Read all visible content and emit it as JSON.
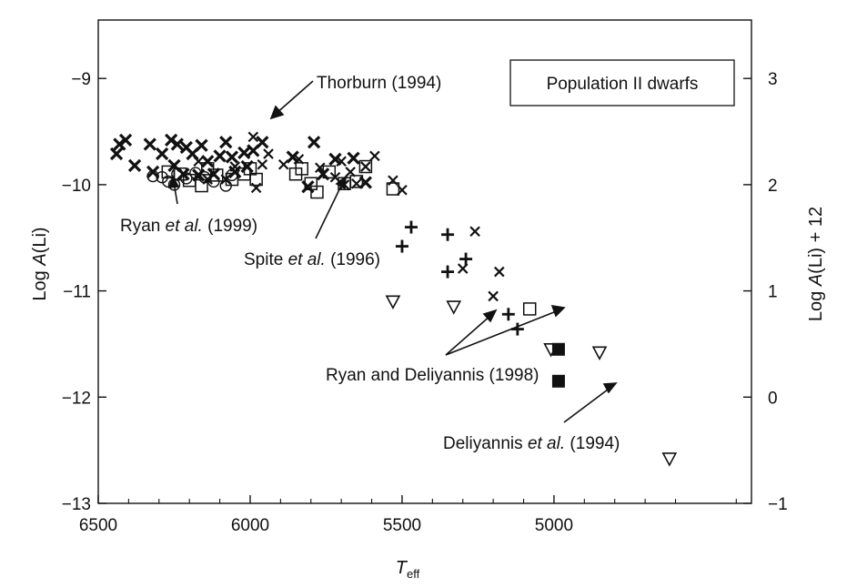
{
  "chart_data": {
    "type": "scatter",
    "title": "",
    "inset_label": "Population II dwarfs",
    "xlabel": "T",
    "xlabel_sub": "eff",
    "ylabel_left": "Log A(Li)",
    "ylabel_right": "Log A(Li) + 12",
    "x_reversed": true,
    "xlim": [
      6500,
      4350
    ],
    "ylim": [
      -13,
      -8.45
    ],
    "x_ticks": [
      6500,
      6000,
      5500,
      5000
    ],
    "x_tick_labels": [
      "6500",
      "6000",
      "5500",
      "5000"
    ],
    "y_ticks_left": [
      -9,
      -10,
      -11,
      -12,
      -13
    ],
    "y_tick_labels_left": [
      "−9",
      "−10",
      "−11",
      "−12",
      "−13"
    ],
    "y_ticks_right_values": [
      3,
      2,
      1,
      0,
      -1
    ],
    "y_tick_labels_right": [
      "3",
      "2",
      "1",
      "0",
      "−1"
    ],
    "grid": false,
    "series": [
      {
        "marker": "x-bold",
        "points": [
          [
            6440,
            -9.71
          ],
          [
            6430,
            -9.62
          ],
          [
            6410,
            -9.58
          ],
          [
            6380,
            -9.82
          ],
          [
            6330,
            -9.62
          ],
          [
            6320,
            -9.88
          ],
          [
            6290,
            -9.71
          ],
          [
            6260,
            -9.58
          ],
          [
            6250,
            -9.82
          ],
          [
            6240,
            -9.62
          ],
          [
            6220,
            -9.9
          ],
          [
            6210,
            -9.65
          ],
          [
            6190,
            -9.71
          ],
          [
            6170,
            -9.91
          ],
          [
            6160,
            -9.63
          ],
          [
            6140,
            -9.78
          ],
          [
            6120,
            -9.9
          ],
          [
            6100,
            -9.73
          ],
          [
            6080,
            -9.6
          ],
          [
            6060,
            -9.74
          ],
          [
            6050,
            -9.88
          ],
          [
            6020,
            -9.7
          ],
          [
            6010,
            -9.83
          ],
          [
            5990,
            -9.68
          ],
          [
            5960,
            -9.6
          ],
          [
            5860,
            -9.74
          ],
          [
            5790,
            -9.6
          ],
          [
            5760,
            -9.9
          ],
          [
            5720,
            -9.76
          ],
          [
            5660,
            -9.75
          ],
          [
            5620,
            -9.98
          ],
          [
            5810,
            -10.02
          ]
        ]
      },
      {
        "marker": "x-thin",
        "points": [
          [
            6170,
            -9.78
          ],
          [
            6140,
            -9.95
          ],
          [
            6080,
            -9.95
          ],
          [
            6050,
            -9.83
          ],
          [
            5990,
            -9.55
          ],
          [
            5980,
            -10.03
          ],
          [
            5960,
            -9.81
          ],
          [
            5940,
            -9.71
          ],
          [
            5890,
            -9.81
          ],
          [
            5840,
            -9.76
          ],
          [
            5770,
            -9.84
          ],
          [
            5720,
            -9.93
          ],
          [
            5700,
            -9.78
          ],
          [
            5690,
            -10.0
          ],
          [
            5670,
            -9.88
          ],
          [
            5650,
            -9.99
          ],
          [
            5620,
            -9.83
          ],
          [
            5590,
            -9.73
          ],
          [
            5530,
            -9.96
          ],
          [
            5500,
            -10.05
          ],
          [
            5260,
            -10.44
          ],
          [
            5300,
            -10.79
          ],
          [
            5200,
            -11.05
          ],
          [
            5180,
            -10.82
          ]
        ]
      },
      {
        "marker": "plus",
        "points": [
          [
            5470,
            -10.4
          ],
          [
            5500,
            -10.58
          ],
          [
            5350,
            -10.47
          ],
          [
            5350,
            -10.82
          ],
          [
            5290,
            -10.7
          ],
          [
            5150,
            -11.22
          ],
          [
            5120,
            -11.36
          ]
        ]
      },
      {
        "marker": "circle-open",
        "points": [
          [
            6320,
            -9.92
          ],
          [
            6290,
            -9.93
          ],
          [
            6270,
            -9.97
          ],
          [
            6250,
            -10.0
          ],
          [
            6240,
            -9.9
          ],
          [
            6210,
            -9.94
          ],
          [
            6180,
            -9.89
          ],
          [
            6150,
            -9.93
          ],
          [
            6120,
            -9.97
          ],
          [
            6080,
            -10.01
          ],
          [
            6060,
            -9.91
          ]
        ]
      },
      {
        "marker": "square-open",
        "points": [
          [
            6270,
            -9.88
          ],
          [
            6230,
            -9.9
          ],
          [
            6200,
            -9.96
          ],
          [
            6160,
            -10.01
          ],
          [
            6140,
            -9.85
          ],
          [
            6110,
            -9.91
          ],
          [
            6060,
            -9.95
          ],
          [
            6020,
            -9.9
          ],
          [
            6000,
            -9.85
          ],
          [
            5980,
            -9.95
          ],
          [
            5850,
            -9.9
          ],
          [
            5830,
            -9.85
          ],
          [
            5800,
            -9.99
          ],
          [
            5780,
            -10.07
          ],
          [
            5740,
            -9.88
          ],
          [
            5690,
            -9.99
          ],
          [
            5650,
            -9.97
          ],
          [
            5620,
            -9.83
          ],
          [
            5530,
            -10.04
          ],
          [
            5080,
            -11.17
          ]
        ]
      },
      {
        "marker": "triangle-down",
        "points": [
          [
            5530,
            -11.1
          ],
          [
            5330,
            -11.15
          ],
          [
            5010,
            -11.55
          ],
          [
            4850,
            -11.58
          ],
          [
            4620,
            -12.58
          ]
        ]
      },
      {
        "marker": "square-filled",
        "points": [
          [
            4985,
            -11.55
          ],
          [
            4985,
            -11.85
          ]
        ]
      }
    ],
    "annotations": [
      {
        "text": "Thorburn (1994)",
        "italic": ""
      },
      {
        "text": "Ryan ",
        "italic": "et al.",
        "tail": " (1999)"
      },
      {
        "text": "Spite ",
        "italic": "et al.",
        "tail": " (1996)"
      },
      {
        "text": "Ryan and Deliyannis (1998)",
        "italic": ""
      },
      {
        "text": "Deliyannis ",
        "italic": "et al.",
        "tail": " (1994)"
      }
    ]
  }
}
